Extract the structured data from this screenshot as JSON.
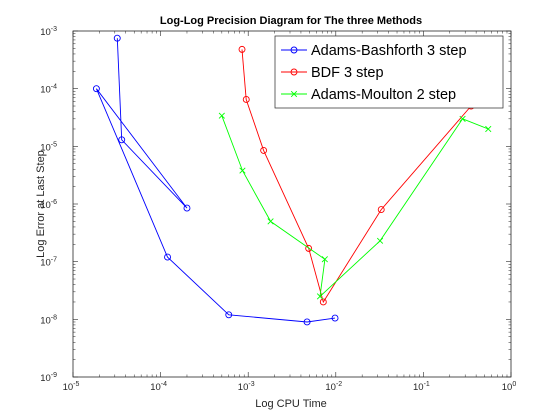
{
  "chart_data": {
    "type": "line",
    "title": "Log-Log Precision Diagram for The three Methods",
    "xlabel": "Log CPU Time",
    "ylabel": "Log Error at Last Step",
    "xscale": "log",
    "yscale": "log",
    "xlim": [
      1e-05,
      1
    ],
    "ylim": [
      1e-09,
      0.001
    ],
    "x_ticks": [
      {
        "base": "10",
        "exp": "-5",
        "value": 1e-05
      },
      {
        "base": "10",
        "exp": "-4",
        "value": 0.0001
      },
      {
        "base": "10",
        "exp": "-3",
        "value": 0.001
      },
      {
        "base": "10",
        "exp": "-2",
        "value": 0.01
      },
      {
        "base": "10",
        "exp": "-1",
        "value": 0.1
      },
      {
        "base": "10",
        "exp": "0",
        "value": 1
      }
    ],
    "y_ticks": [
      {
        "base": "10",
        "exp": "-9",
        "value": 1e-09
      },
      {
        "base": "10",
        "exp": "-8",
        "value": 1e-08
      },
      {
        "base": "10",
        "exp": "-7",
        "value": 1e-07
      },
      {
        "base": "10",
        "exp": "-6",
        "value": 1e-06
      },
      {
        "base": "10",
        "exp": "-5",
        "value": 1e-05
      },
      {
        "base": "10",
        "exp": "-4",
        "value": 0.0001
      },
      {
        "base": "10",
        "exp": "-3",
        "value": 0.001
      }
    ],
    "grid": false,
    "legend_position": "top-right",
    "series": [
      {
        "name": "Adams-Bashforth 3 step",
        "color": "#0000ff",
        "marker": "circle",
        "x": [
          3.2e-05,
          3.6e-05,
          0.0002,
          1.85e-05,
          0.00012,
          0.0006,
          0.0047,
          0.0098
        ],
        "y": [
          0.00075,
          1.3e-05,
          8.5e-07,
          0.0001,
          1.2e-07,
          1.2e-08,
          9e-09,
          1.05e-08
        ]
      },
      {
        "name": "BDF 3 step",
        "color": "#ff0000",
        "marker": "circle",
        "x": [
          0.00085,
          0.00095,
          0.0015,
          0.0049,
          0.0072,
          0.033,
          0.35
        ],
        "y": [
          0.00048,
          6.5e-05,
          8.5e-06,
          1.7e-07,
          2e-08,
          8e-07,
          5e-05
        ]
      },
      {
        "name": "Adams-Moulton 2 step",
        "color": "#00ff00",
        "marker": "x",
        "x": [
          0.0005,
          0.00086,
          0.0018,
          0.0075,
          0.0066,
          0.032,
          0.28,
          0.55
        ],
        "y": [
          3.4e-05,
          3.8e-06,
          5e-07,
          1.1e-07,
          2.5e-08,
          2.3e-07,
          3e-05,
          2e-05
        ]
      }
    ]
  }
}
